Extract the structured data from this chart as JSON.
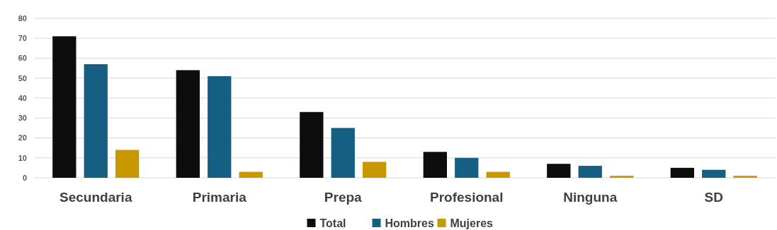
{
  "chart_data": {
    "type": "bar",
    "categories": [
      "Secundaria",
      "Primaria",
      "Prepa",
      "Profesional",
      "Ninguna",
      "SD"
    ],
    "series": [
      {
        "name": "Total",
        "color": "#0d0d0d",
        "values": [
          71,
          54,
          33,
          13,
          7,
          5
        ]
      },
      {
        "name": "Hombres",
        "color": "#156082",
        "values": [
          57,
          51,
          25,
          10,
          6,
          4
        ]
      },
      {
        "name": "Mujeres",
        "color": "#c89800",
        "values": [
          14,
          3,
          8,
          3,
          1,
          1
        ]
      }
    ],
    "ylim": [
      0,
      80
    ],
    "yticks": [
      0,
      10,
      20,
      30,
      40,
      50,
      60,
      70,
      80
    ],
    "grid": "y",
    "legend": "bottom"
  }
}
